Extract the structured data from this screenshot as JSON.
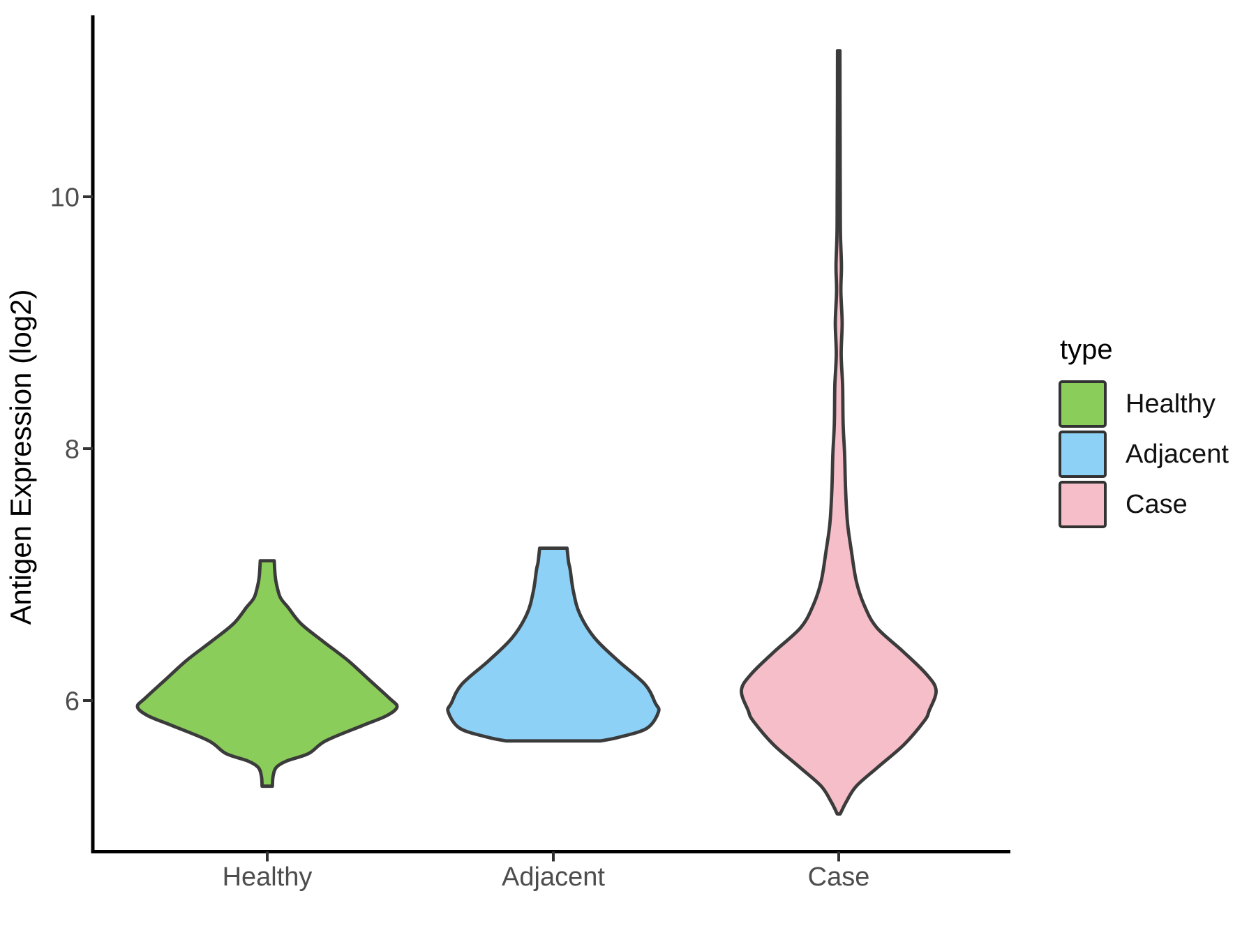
{
  "figure": {
    "background": "#FFFFFF"
  },
  "chart_data": {
    "type": "violin",
    "title": "",
    "xlabel": "",
    "ylabel": "Antigen Expression (log2)",
    "categories": [
      "Healthy",
      "Adjacent",
      "Case"
    ],
    "y_axis": {
      "ticks": [
        {
          "value": 6,
          "label": "6"
        },
        {
          "value": 8,
          "label": "8"
        },
        {
          "value": 10,
          "label": "10"
        }
      ],
      "range": [
        4.8,
        11.5
      ],
      "grid": false
    },
    "legend": {
      "title": "type",
      "position": "right",
      "entries": [
        {
          "label": "Healthy",
          "color": "#8BCD5A"
        },
        {
          "label": "Adjacent",
          "color": "#8DD2F6"
        },
        {
          "label": "Case",
          "color": "#F6BEC9"
        }
      ]
    },
    "series": [
      {
        "name": "Healthy",
        "color": "#8BCD5A",
        "min": 5.32,
        "max": 7.11,
        "peak_at": 5.95,
        "width_scale": 1.0,
        "profile": [
          [
            7.11,
            0.054
          ],
          [
            7.0,
            0.06
          ],
          [
            6.93,
            0.07
          ],
          [
            6.82,
            0.1
          ],
          [
            6.74,
            0.16
          ],
          [
            6.61,
            0.26
          ],
          [
            6.47,
            0.43
          ],
          [
            6.32,
            0.62
          ],
          [
            6.17,
            0.78
          ],
          [
            6.02,
            0.94
          ],
          [
            5.95,
            1.0
          ],
          [
            5.88,
            0.92
          ],
          [
            5.8,
            0.73
          ],
          [
            5.68,
            0.45
          ],
          [
            5.58,
            0.32
          ],
          [
            5.52,
            0.15
          ],
          [
            5.47,
            0.07
          ],
          [
            5.4,
            0.045
          ],
          [
            5.32,
            0.04
          ]
        ]
      },
      {
        "name": "Adjacent",
        "color": "#8DD2F6",
        "min": 5.68,
        "max": 7.21,
        "peak_at": 5.91,
        "width_scale": 0.81,
        "profile": [
          [
            7.21,
            0.13
          ],
          [
            7.1,
            0.145
          ],
          [
            7.04,
            0.16
          ],
          [
            6.87,
            0.19
          ],
          [
            6.69,
            0.25
          ],
          [
            6.5,
            0.39
          ],
          [
            6.32,
            0.61
          ],
          [
            6.13,
            0.87
          ],
          [
            5.98,
            0.97
          ],
          [
            5.91,
            1.0
          ],
          [
            5.78,
            0.89
          ],
          [
            5.71,
            0.63
          ],
          [
            5.68,
            0.45
          ]
        ]
      },
      {
        "name": "Case",
        "color": "#F6BEC9",
        "min": 5.1,
        "max": 11.16,
        "peak_at": 6.08,
        "width_scale": 0.75,
        "profile": [
          [
            11.16,
            0.012
          ],
          [
            10.8,
            0.013
          ],
          [
            10.4,
            0.014
          ],
          [
            10.0,
            0.016
          ],
          [
            9.7,
            0.018
          ],
          [
            9.45,
            0.028
          ],
          [
            9.25,
            0.022
          ],
          [
            9.0,
            0.035
          ],
          [
            8.75,
            0.025
          ],
          [
            8.5,
            0.04
          ],
          [
            8.2,
            0.045
          ],
          [
            7.96,
            0.06
          ],
          [
            7.68,
            0.07
          ],
          [
            7.41,
            0.09
          ],
          [
            7.19,
            0.13
          ],
          [
            6.95,
            0.18
          ],
          [
            6.76,
            0.26
          ],
          [
            6.58,
            0.39
          ],
          [
            6.39,
            0.66
          ],
          [
            6.21,
            0.9
          ],
          [
            6.08,
            1.0
          ],
          [
            5.92,
            0.93
          ],
          [
            5.84,
            0.88
          ],
          [
            5.65,
            0.67
          ],
          [
            5.47,
            0.4
          ],
          [
            5.32,
            0.18
          ],
          [
            5.2,
            0.08
          ],
          [
            5.1,
            0.015
          ]
        ]
      }
    ],
    "style": {
      "violin_stroke": "#3B3B3B",
      "axis_color": "#000000",
      "tick_color": "#333333",
      "tick_label_color": "#4D4D4D",
      "axis_title_color": "#000000",
      "legend_text_color": "#111111"
    }
  }
}
